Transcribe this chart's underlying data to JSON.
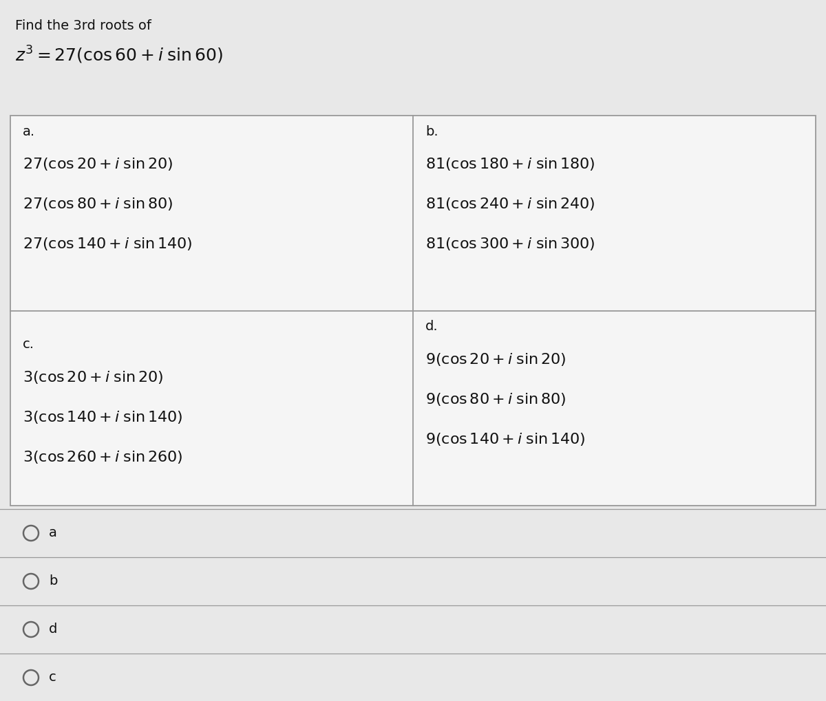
{
  "title_line1": "Find the 3rd roots of",
  "title_line2": "$z^3 = 27 (\\mathrm{cos}\\,60 + i\\;\\mathrm{sin}\\,60)$",
  "cell_a_label": "a.",
  "cell_a_lines": [
    "$27 (\\mathrm{cos}\\,20 + i\\;\\mathrm{sin}\\,20)$",
    "$27 (\\mathrm{cos}\\,80 + i\\;\\mathrm{sin}\\,80)$",
    "$27 (\\mathrm{cos}\\,140 + i\\;\\mathrm{sin}\\,140)$"
  ],
  "cell_b_label": "b.",
  "cell_b_lines": [
    "$81 (\\mathrm{cos}\\,180 + i\\;\\mathrm{sin}\\,180)$",
    "$81 (\\mathrm{cos}\\,240 + i\\;\\mathrm{sin}\\,240)$",
    "$81 (\\mathrm{cos}\\,300 + i\\;\\mathrm{sin}\\,300)$"
  ],
  "cell_c_label": "c.",
  "cell_c_lines": [
    "$3 (\\mathrm{cos}\\,20 + i\\;\\mathrm{sin}\\,20)$",
    "$3 (\\mathrm{cos}\\,140 + i\\;\\mathrm{sin}\\,140)$",
    "$3 (\\mathrm{cos}\\,260 + i\\;\\mathrm{sin}\\,260)$"
  ],
  "cell_d_label": "d.",
  "cell_d_lines": [
    "$9 (\\mathrm{cos}\\,20 + i\\;\\mathrm{sin}\\,20)$",
    "$9 (\\mathrm{cos}\\,80 + i\\;\\mathrm{sin}\\,80)$",
    "$9 (\\mathrm{cos}\\,140 + i\\;\\mathrm{sin}\\,140)$"
  ],
  "radio_options": [
    "a",
    "b",
    "d",
    "c"
  ],
  "bg_color": "#e8e8e8",
  "cell_bg_color": "#f5f5f5",
  "border_color": "#999999",
  "text_color": "#111111",
  "font_size_title1": 14,
  "font_size_title2": 18,
  "font_size_cell_label": 14,
  "font_size_cell_content": 16,
  "font_size_radio": 14
}
